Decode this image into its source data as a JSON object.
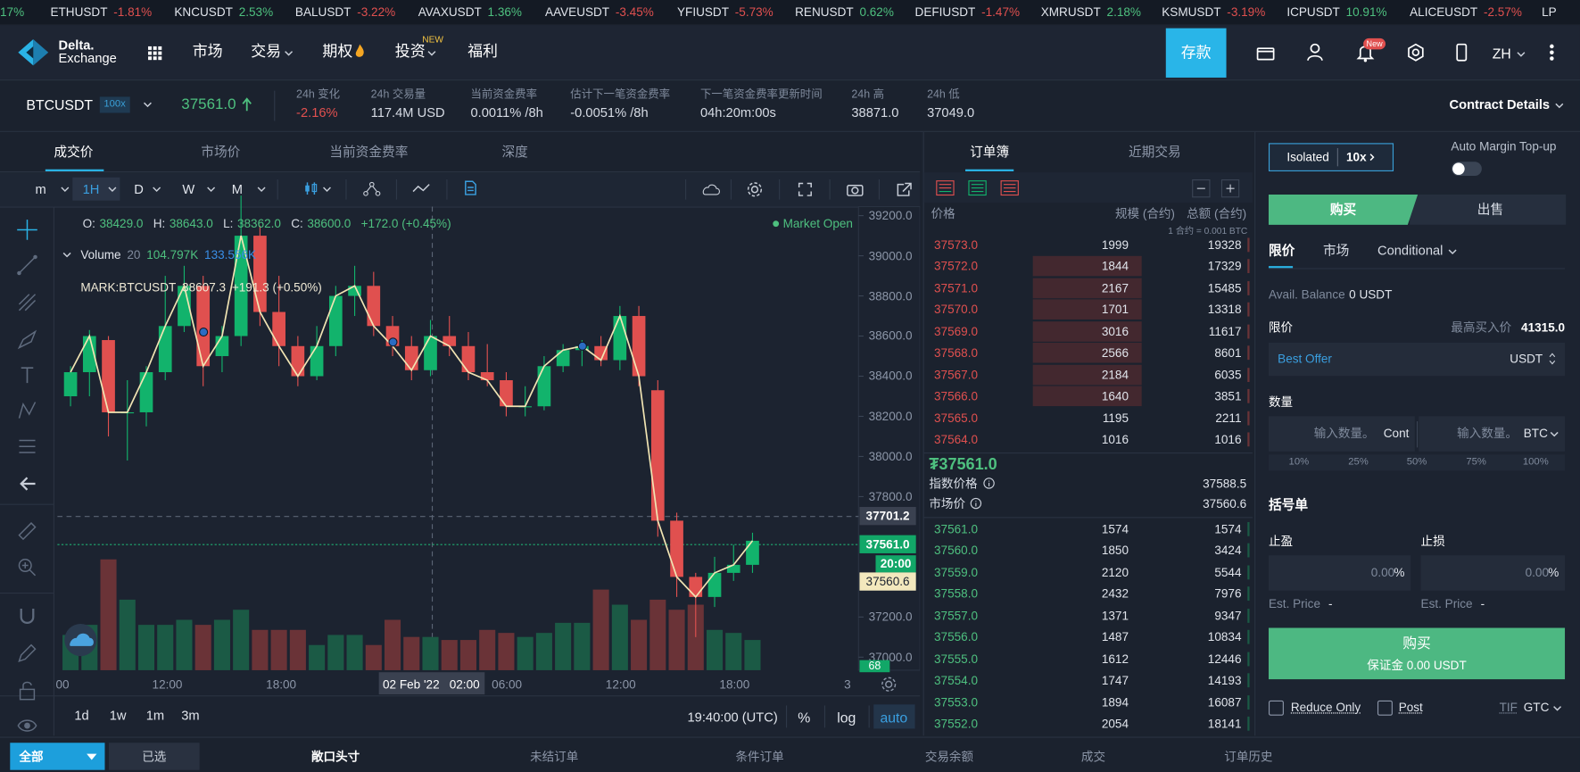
{
  "ticker": [
    {
      "change": "17%"
    },
    {
      "symbol": "ETHUSDT",
      "change": "-1.81%"
    },
    {
      "symbol": "KNCUSDT",
      "change": "2.53%"
    },
    {
      "symbol": "BALUSDT",
      "change": "-3.22%"
    },
    {
      "symbol": "AVAXUSDT",
      "change": "1.36%"
    },
    {
      "symbol": "AAVEUSDT",
      "change": "-3.45%"
    },
    {
      "symbol": "YFIUSDT",
      "change": "-5.73%"
    },
    {
      "symbol": "RENUSDT",
      "change": "0.62%"
    },
    {
      "symbol": "DEFIUSDT",
      "change": "-1.47%"
    },
    {
      "symbol": "XMRUSDT",
      "change": "2.18%"
    },
    {
      "symbol": "KSMUSDT",
      "change": "-3.19%"
    },
    {
      "symbol": "ICPUSDT",
      "change": "10.91%"
    },
    {
      "symbol": "ALICEUSDT",
      "change": "-2.57%"
    },
    {
      "symbol": "LP"
    }
  ],
  "nav": {
    "logo": [
      "Delta.",
      "Exchange"
    ],
    "menu": [
      "市场",
      "交易",
      "期权",
      "投资",
      "福利"
    ],
    "badge_new": "NEW",
    "deposit": "存款",
    "notify_badge": "New",
    "lang": "ZH"
  },
  "symbol": {
    "name": "BTCUSDT",
    "leverage": "100x",
    "price": "37561.0",
    "contract": "Contract Details",
    "stats": [
      {
        "label": "24h 变化",
        "value": "-2.16%"
      },
      {
        "label": "24h 交易量",
        "value": "117.4M USD"
      },
      {
        "label": "当前资金费率",
        "value": "0.0011% /8h"
      },
      {
        "label": "估计下一笔资金费率",
        "value": "-0.0051% /8h"
      },
      {
        "label": "下一笔资金费率更新时间",
        "value": "04h:20m:00s"
      },
      {
        "label": "24h 高",
        "value": "38871.0"
      },
      {
        "label": "24h 低",
        "value": "37049.0"
      }
    ]
  },
  "chart": {
    "tabs": [
      "成交价",
      "市场价",
      "当前资金费率",
      "深度"
    ],
    "intervals": [
      "m",
      "1H",
      "D",
      "W",
      "M"
    ],
    "ohlc": [
      {
        "k": "O:",
        "v": "38429.0"
      },
      {
        "k": "H:",
        "v": "38643.0"
      },
      {
        "k": "L:",
        "v": "38362.0"
      },
      {
        "k": "C:",
        "v": "38600.0"
      }
    ],
    "ohlc_change": "+172.0 (+0.45%)",
    "volume": {
      "name": "Volume",
      "period": "20",
      "values": [
        "104.797K",
        "133.556K"
      ]
    },
    "mark": {
      "label": "MARK:BTCUSDT",
      "value": "38607.3",
      "change": "+191.3 (+0.50%)"
    },
    "status": "Market Open",
    "ylim": [
      36935,
      39245
    ],
    "yticks": [
      {
        "value": 39200,
        "label": "39200.0"
      },
      {
        "value": 39000,
        "label": "39000.0"
      },
      {
        "value": 38800,
        "label": "38800.0"
      },
      {
        "value": 38600,
        "label": "38600.0"
      },
      {
        "value": 38400,
        "label": "38400.0"
      },
      {
        "value": 38200,
        "label": "38200.0"
      },
      {
        "value": 38000,
        "label": "38000.0"
      },
      {
        "value": 37800,
        "label": "37800.0"
      },
      {
        "value": 37200,
        "label": "37200.0"
      },
      {
        "value": 37000,
        "label": "37000.0"
      }
    ],
    "crosshair_price": 37701.2,
    "last_price": {
      "value": 37561,
      "label": "37561.0"
    },
    "countdown": "20:00",
    "mark_tag": "37560.6",
    "volume_tag": "68",
    "xlabels": [
      "00",
      "12:00",
      "18:00",
      "02 Feb '22",
      "02:00",
      "06:00",
      "12:00",
      "18:00",
      "3"
    ],
    "ranges": [
      "1d",
      "1w",
      "1m",
      "3m"
    ],
    "clock": "19:40:00 (UTC)",
    "options": [
      "%",
      "log",
      "auto"
    ],
    "candles": {
      "o": [
        38300,
        38420,
        38580,
        38220,
        38220,
        38420,
        38650,
        38850,
        38500,
        38600,
        39100,
        38720,
        38550,
        38400,
        38550,
        38800,
        38850,
        38650,
        38550,
        38430,
        38600,
        38550,
        38420,
        38380,
        38250,
        38250,
        38450,
        38530,
        38550,
        38480,
        38700,
        38330,
        37680,
        37400,
        37300,
        37420,
        37460
      ],
      "h": [
        38450,
        38630,
        38600,
        38380,
        38450,
        38900,
        38950,
        38900,
        38650,
        39300,
        39150,
        38900,
        38600,
        38650,
        38850,
        38950,
        38920,
        38700,
        38600,
        38680,
        38700,
        38620,
        38560,
        38420,
        38350,
        38500,
        38560,
        38580,
        38600,
        38750,
        38750,
        38380,
        37720,
        37420,
        37500,
        37560,
        37620
      ],
      "l": [
        38250,
        38300,
        38100,
        37980,
        38150,
        38380,
        38620,
        38350,
        38420,
        38550,
        38650,
        38450,
        38350,
        38380,
        38500,
        38700,
        38600,
        38500,
        38380,
        38400,
        38500,
        38380,
        38350,
        38200,
        38200,
        38230,
        38420,
        38450,
        38450,
        38430,
        38350,
        37600,
        37300,
        37100,
        37250,
        37380,
        37420
      ],
      "c": [
        38420,
        38600,
        38220,
        38220,
        38420,
        38650,
        38850,
        38450,
        38600,
        39100,
        38720,
        38550,
        38400,
        38550,
        38800,
        38850,
        38650,
        38550,
        38430,
        38600,
        38550,
        38420,
        38380,
        38250,
        38250,
        38450,
        38530,
        38550,
        38480,
        38700,
        38400,
        37680,
        37400,
        37300,
        37420,
        37460,
        37580
      ],
      "v": [
        35,
        45,
        110,
        70,
        45,
        45,
        50,
        45,
        50,
        60,
        40,
        40,
        40,
        25,
        35,
        35,
        25,
        50,
        33,
        33,
        30,
        30,
        40,
        37,
        33,
        37,
        47,
        47,
        80,
        65,
        50,
        70,
        60,
        65,
        40,
        37,
        30
      ]
    }
  },
  "orderbook": {
    "tabs": [
      "订单簿",
      "近期交易"
    ],
    "headers": [
      "价格",
      "规模 (合约)",
      "总额 (合约)"
    ],
    "note": "1 合约 = 0.001 BTC",
    "asks": [
      [
        "37573.0",
        1999,
        19328
      ],
      [
        "37572.0",
        1844,
        17329
      ],
      [
        "37571.0",
        2167,
        15485
      ],
      [
        "37570.0",
        1701,
        13318
      ],
      [
        "37569.0",
        3016,
        11617
      ],
      [
        "37568.0",
        2566,
        8601
      ],
      [
        "37567.0",
        2184,
        6035
      ],
      [
        "37566.0",
        1640,
        3851
      ],
      [
        "37565.0",
        1195,
        2211
      ],
      [
        "37564.0",
        1016,
        1016
      ]
    ],
    "mid": {
      "price": "₮37561.0",
      "index_label": "指数价格",
      "index": "37588.5",
      "mark_label": "市场价",
      "mark": "37560.6"
    },
    "bids": [
      [
        "37561.0",
        1574,
        1574
      ],
      [
        "37560.0",
        1850,
        3424
      ],
      [
        "37559.0",
        2120,
        5544
      ],
      [
        "37558.0",
        2432,
        7976
      ],
      [
        "37557.0",
        1371,
        9347
      ],
      [
        "37556.0",
        1487,
        10834
      ],
      [
        "37555.0",
        1612,
        12446
      ],
      [
        "37554.0",
        1747,
        14193
      ],
      [
        "37553.0",
        1894,
        16087
      ],
      [
        "37552.0",
        2054,
        18141
      ]
    ]
  },
  "form": {
    "margin_mode": "Isolated",
    "leverage": "10x",
    "auto_margin": "Auto Margin Top-up",
    "sides": [
      "购买",
      "出售"
    ],
    "order_types": [
      "限价",
      "市场",
      "Conditional"
    ],
    "balance_label": "Avail. Balance",
    "balance": "0 USDT",
    "price_label": "限价",
    "max_buy_label": "最高买入价",
    "max_buy": "41315.0",
    "price_input": "Best Offer",
    "price_unit": "USDT",
    "qty_label": "数量",
    "qty_placeholder": "输入数量。",
    "qty_units": [
      "Cont",
      "BTC"
    ],
    "percents": [
      "10%",
      "25%",
      "50%",
      "75%",
      "100%"
    ],
    "bracket": "括号单",
    "tp": "止盈",
    "sl": "止损",
    "tp_sl_value": "0.00",
    "pct": "%",
    "est": "Est. Price",
    "est_value": "-",
    "submit": "购买",
    "margin": "保证金 0.00 USDT",
    "reduce": "Reduce Only",
    "post": "Post",
    "tif": "TIF",
    "tif_value": "GTC"
  },
  "bottom": {
    "filters": [
      "全部",
      "已选"
    ],
    "tabs": [
      "敞口头寸",
      "未结订单",
      "条件订单",
      "交易余额",
      "成交",
      "订单历史"
    ]
  }
}
